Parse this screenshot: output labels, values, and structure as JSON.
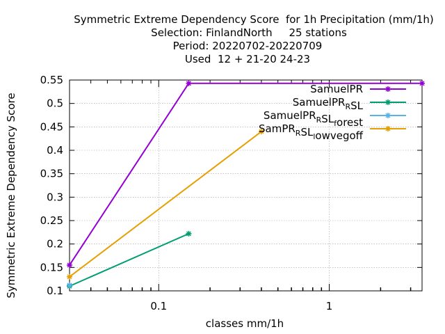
{
  "chart_data": {
    "type": "line",
    "title_lines": [
      "Symmetric Extreme Dependency Score  for 1h Precipitation (mm/1h)",
      "Selection: FinlandNorth     25 stations",
      "Period: 20220702-20220709",
      "Used  12 + 21-20 24-23"
    ],
    "xlabel": "classes mm/1h",
    "ylabel": "Symmetric Extreme Dependency Score",
    "x_scale": "log",
    "xlim": [
      0.03,
      3.5
    ],
    "ylim": [
      0.1,
      0.55
    ],
    "x_ticks": [
      {
        "v": 0.1,
        "label": "0.1"
      },
      {
        "v": 1,
        "label": "1"
      }
    ],
    "x_minor_ticks": [
      0.04,
      0.05,
      0.06,
      0.07,
      0.08,
      0.09,
      0.2,
      0.3,
      0.4,
      0.5,
      0.6,
      0.7,
      0.8,
      0.9,
      2,
      3
    ],
    "y_ticks": [
      {
        "v": 0.1,
        "label": "0.1"
      },
      {
        "v": 0.15,
        "label": "0.15"
      },
      {
        "v": 0.2,
        "label": "0.2"
      },
      {
        "v": 0.25,
        "label": "0.25"
      },
      {
        "v": 0.3,
        "label": "0.3"
      },
      {
        "v": 0.35,
        "label": "0.35"
      },
      {
        "v": 0.4,
        "label": "0.4"
      },
      {
        "v": 0.45,
        "label": "0.45"
      },
      {
        "v": 0.5,
        "label": "0.5"
      },
      {
        "v": 0.55,
        "label": "0.55"
      }
    ],
    "grid": true,
    "legend_position": "top-right",
    "series": [
      {
        "name_parts": [
          {
            "t": "SamuelPR"
          }
        ],
        "color": "#9400d3",
        "x": [
          0.03,
          0.15,
          3.5
        ],
        "y": [
          0.155,
          0.543,
          0.543
        ]
      },
      {
        "name_parts": [
          {
            "t": "SamuelPR"
          },
          {
            "t": "R",
            "sub": true
          },
          {
            "t": "SL"
          }
        ],
        "color": "#009e73",
        "x": [
          0.03,
          0.15
        ],
        "y": [
          0.11,
          0.222
        ]
      },
      {
        "name_parts": [
          {
            "t": "SamuelPR"
          },
          {
            "t": "R",
            "sub": true
          },
          {
            "t": "SL"
          },
          {
            "t": "f",
            "sub": true
          },
          {
            "t": "orest"
          }
        ],
        "color": "#56b4e9",
        "x": [
          0.03
        ],
        "y": [
          0.112
        ]
      },
      {
        "name_parts": [
          {
            "t": "SamPR"
          },
          {
            "t": "R",
            "sub": true
          },
          {
            "t": "SL"
          },
          {
            "t": "l",
            "sub": true
          },
          {
            "t": "owvegoff"
          }
        ],
        "color": "#e69f00",
        "x": [
          0.03,
          0.4
        ],
        "y": [
          0.13,
          0.44
        ]
      }
    ]
  }
}
